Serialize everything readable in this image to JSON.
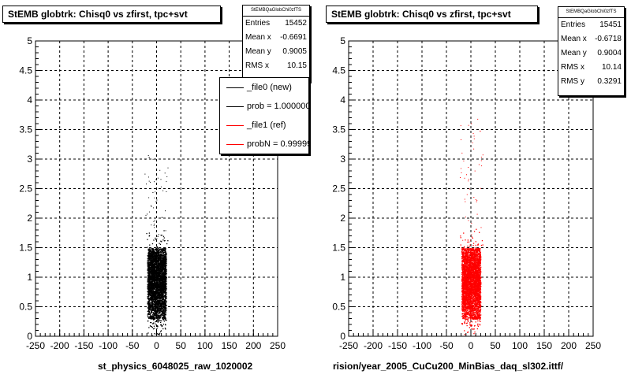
{
  "chart_data": [
    {
      "type": "scatter",
      "title": "StEMB globtrk: Chisq0 vs zfirst, tpc+svt",
      "xlabel": "",
      "ylabel": "",
      "xlim": [
        -250,
        250
      ],
      "ylim": [
        0,
        5
      ],
      "xticks": [
        -250,
        -200,
        -150,
        -100,
        -50,
        0,
        50,
        100,
        150,
        200,
        250
      ],
      "yticks": [
        0,
        0.5,
        1,
        1.5,
        2,
        2.5,
        3,
        3.5,
        4,
        4.5,
        5
      ],
      "grid": true,
      "point_color": "#000000",
      "series": [
        {
          "name": "_file0 (new)",
          "x_range": [
            -25,
            25
          ],
          "y_range": [
            0,
            3.1
          ]
        }
      ],
      "stats": {
        "title": "StEMBQaGlobChi0zfTS",
        "rows": [
          {
            "label": "Entries",
            "value": "15452"
          },
          {
            "label": "Mean x",
            "value": "-0.6691"
          },
          {
            "label": "Mean y",
            "value": "0.9005"
          },
          {
            "label": "RMS x",
            "value": "10.15"
          }
        ]
      },
      "legend": {
        "entries": [
          {
            "label": "_file0 (new)",
            "color": "#000000"
          },
          {
            "label": "prob = 1.000000",
            "color": "#000000"
          },
          {
            "label": "_file1 (ref)",
            "color": "#ff0000"
          },
          {
            "label": "probN = 0.999999",
            "color": "#ff0000"
          }
        ]
      },
      "footer": "st_physics_6048025_raw_1020002"
    },
    {
      "type": "scatter",
      "title": "StEMB globtrk: Chisq0 vs zfirst, tpc+svt",
      "xlabel": "",
      "ylabel": "",
      "xlim": [
        -250,
        250
      ],
      "ylim": [
        0,
        5
      ],
      "xticks": [
        -250,
        -200,
        -150,
        -100,
        -50,
        0,
        50,
        100,
        150,
        200,
        250
      ],
      "yticks": [
        0,
        0.5,
        1,
        1.5,
        2,
        2.5,
        3,
        3.5,
        4,
        4.5,
        5
      ],
      "grid": true,
      "point_color": "#ff0000",
      "series": [
        {
          "name": "_file1 (ref)",
          "x_range": [
            -25,
            25
          ],
          "y_range": [
            0,
            3.75
          ]
        }
      ],
      "stats": {
        "title": "StEMBQaGlobChi0zfTS",
        "rows": [
          {
            "label": "Entries",
            "value": "15451"
          },
          {
            "label": "Mean x",
            "value": "-0.6718"
          },
          {
            "label": "Mean y",
            "value": "0.9004"
          },
          {
            "label": "RMS x",
            "value": "10.14"
          },
          {
            "label": "RMS y",
            "value": "0.3291"
          }
        ]
      },
      "footer": "rision/year_2005_CuCu200_MinBias_daq_sl302.ittf/"
    }
  ]
}
